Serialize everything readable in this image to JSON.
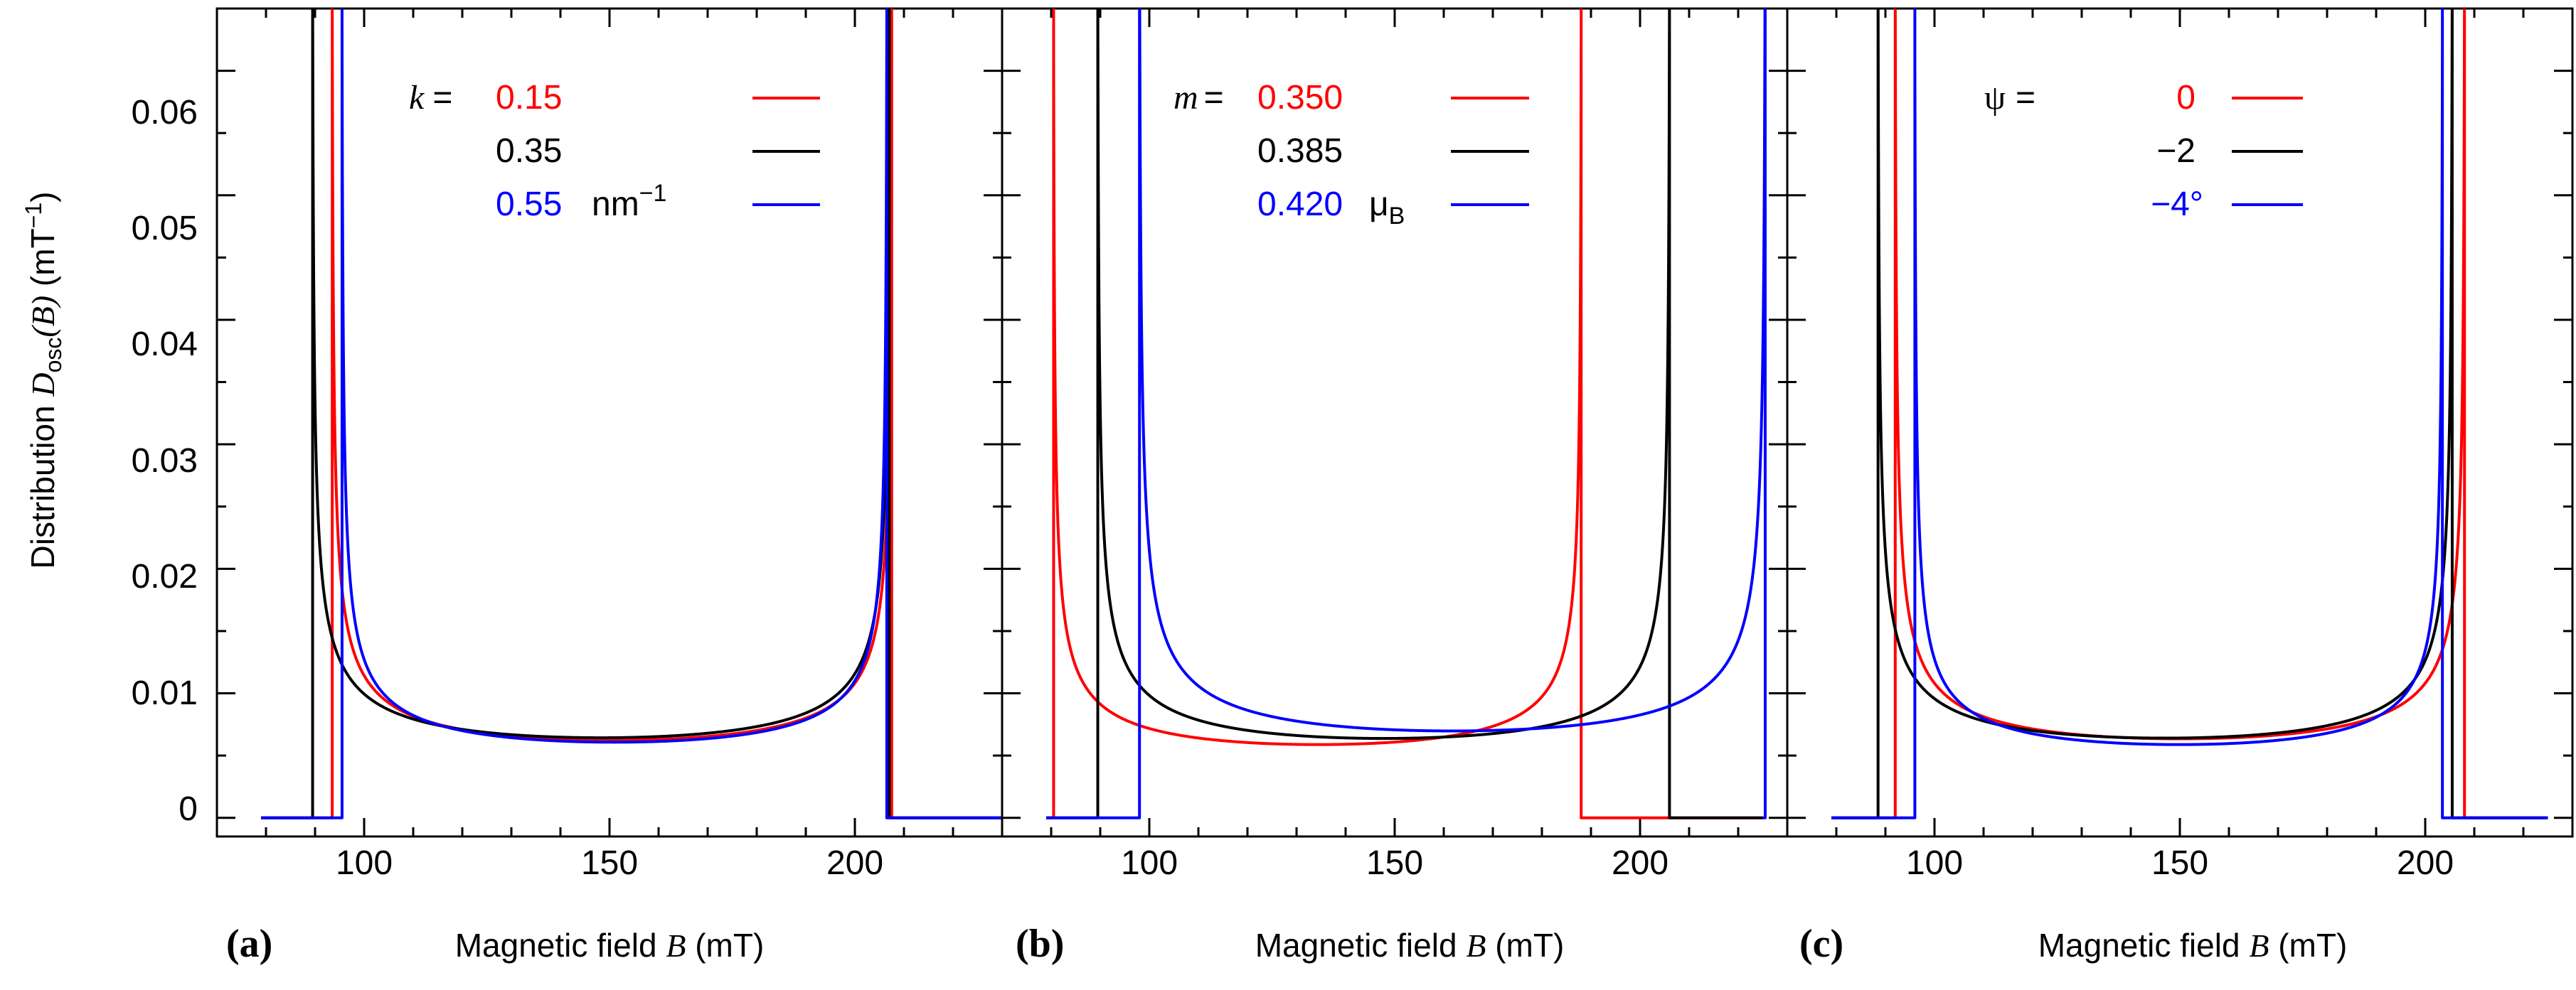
{
  "figure": {
    "ylabel_prefix": "Distribution",
    "ylabel_symbol": "D",
    "ylabel_sub": "osc",
    "ylabel_arg": "(B)",
    "ylabel_unit": "(mT",
    "ylabel_unit_exp": "−1",
    "ylabel_unit_close": ")",
    "yticks": [
      "0",
      "0.01",
      "0.02",
      "0.03",
      "0.04",
      "0.05",
      "0.06"
    ],
    "xlabel_text": "Magnetic field",
    "xlabel_symbol": "B",
    "xlabel_unit": "(mT)"
  },
  "chart_data": [
    {
      "type": "line",
      "panel_label": "(a)",
      "xlim": [
        70,
        230
      ],
      "ylim": [
        -0.0015,
        0.065
      ],
      "xticks": [
        100,
        150,
        200
      ],
      "yticks": [
        0,
        0.01,
        0.02,
        0.03,
        0.04,
        0.05,
        0.06
      ],
      "xlabel": "Magnetic field B (mT)",
      "ylabel": "Distribution D_osc(B) (mT^-1)",
      "legend": {
        "param_symbol": "k",
        "param_eq": "=",
        "param_unit_base": "nm",
        "param_unit_exp": "−1",
        "entries": [
          {
            "label": "0.15",
            "color": "#ff0000"
          },
          {
            "label": "0.35",
            "color": "#000000"
          },
          {
            "label": "0.55",
            "color": "#0000ff"
          }
        ]
      },
      "series": [
        {
          "name": "0.15",
          "color": "#ff0000",
          "x_range": [
            79,
            230
          ],
          "b_low": 93.5,
          "b_high": 207.5
        },
        {
          "name": "0.35",
          "color": "#000000",
          "x_range": [
            79,
            230
          ],
          "b_low": 89.5,
          "b_high": 207.0
        },
        {
          "name": "0.55",
          "color": "#0000ff",
          "x_range": [
            79,
            230
          ],
          "b_low": 95.5,
          "b_high": 206.5
        }
      ]
    },
    {
      "type": "line",
      "panel_label": "(b)",
      "xlim": [
        70,
        230
      ],
      "ylim": [
        -0.0015,
        0.065
      ],
      "xticks": [
        100,
        150,
        200
      ],
      "yticks": [
        0,
        0.01,
        0.02,
        0.03,
        0.04,
        0.05,
        0.06
      ],
      "xlabel": "Magnetic field B (mT)",
      "ylabel": "",
      "legend": {
        "param_symbol": "m",
        "param_eq": "=",
        "param_unit_base": "μ",
        "param_unit_sub": "B",
        "entries": [
          {
            "label": "0.350",
            "color": "#ff0000"
          },
          {
            "label": "0.385",
            "color": "#000000"
          },
          {
            "label": "0.420",
            "color": "#0000ff"
          }
        ]
      },
      "series": [
        {
          "name": "0.350",
          "color": "#ff0000",
          "x_range": [
            79,
            225
          ],
          "b_low": 80.5,
          "b_high": 188.0
        },
        {
          "name": "0.385",
          "color": "#000000",
          "x_range": [
            79,
            225
          ],
          "b_low": 89.5,
          "b_high": 206.0
        },
        {
          "name": "0.420",
          "color": "#0000ff",
          "x_range": [
            79,
            225
          ],
          "b_low": 98.0,
          "b_high": 225.5
        }
      ]
    },
    {
      "type": "line",
      "panel_label": "(c)",
      "xlim": [
        70,
        230
      ],
      "ylim": [
        -0.0015,
        0.065
      ],
      "xticks": [
        100,
        150,
        200
      ],
      "yticks": [
        0,
        0.01,
        0.02,
        0.03,
        0.04,
        0.05,
        0.06
      ],
      "xlabel": "Magnetic field B (mT)",
      "ylabel": "",
      "legend": {
        "param_symbol": "ψ",
        "param_eq": "=",
        "entries": [
          {
            "label": "0",
            "color": "#ff0000"
          },
          {
            "label": "−2",
            "color": "#000000"
          },
          {
            "label": "−4°",
            "color": "#0000ff"
          }
        ]
      },
      "series": [
        {
          "name": "0",
          "color": "#ff0000",
          "x_range": [
            79,
            225
          ],
          "b_low": 92.0,
          "b_high": 208.0
        },
        {
          "name": "−2",
          "color": "#000000",
          "x_range": [
            79,
            225
          ],
          "b_low": 88.5,
          "b_high": 205.5
        },
        {
          "name": "−4°",
          "color": "#0000ff",
          "x_range": [
            79,
            225
          ],
          "b_low": 96.0,
          "b_high": 203.5
        }
      ]
    }
  ]
}
